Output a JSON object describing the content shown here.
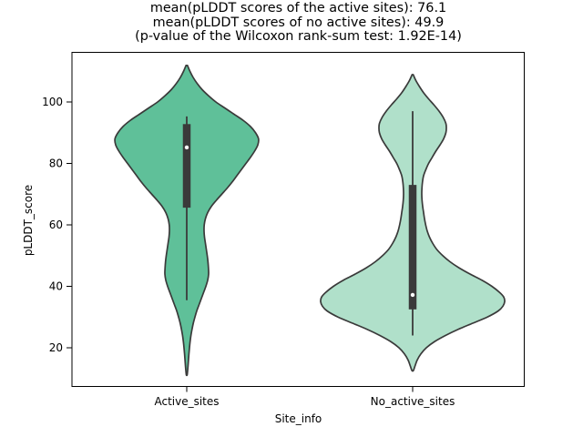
{
  "chart_data": {
    "type": "violin",
    "title_lines": [
      "mean(pLDDT scores of the active sites): 76.1",
      "mean(pLDDT scores of no active sites): 49.9",
      "(p-value of the Wilcoxon rank-sum test: 1.92E-14)"
    ],
    "xlabel": "Site_info",
    "ylabel": "pLDDT_score",
    "categories": [
      "Active_sites",
      "No_active_sites"
    ],
    "yticks": [
      20,
      40,
      60,
      80,
      100
    ],
    "ylim": [
      7.3,
      116.1
    ],
    "grid": false,
    "legend": "none",
    "stats": {
      "mean_active_sites": 76.1,
      "mean_no_active_sites": 49.9,
      "wilcoxon_p_value": "1.92E-14"
    },
    "series": [
      {
        "name": "Active_sites",
        "fill_color": "#5fc099",
        "box": {
          "whisker_low": 35.5,
          "q1": 65.6,
          "median": 85.2,
          "q3": 92.8,
          "whisker_high": 95.3
        },
        "kde_extent": [
          11.1,
          111.9
        ],
        "kde_profile": [
          [
            111.9,
            0.8
          ],
          [
            110,
            3.5
          ],
          [
            108,
            7
          ],
          [
            106,
            11.5
          ],
          [
            104,
            17
          ],
          [
            102,
            24
          ],
          [
            100,
            32
          ],
          [
            98,
            42
          ],
          [
            96,
            52
          ],
          [
            94,
            62
          ],
          [
            92,
            70
          ],
          [
            90,
            75.5
          ],
          [
            88,
            78.8
          ],
          [
            86,
            78
          ],
          [
            84,
            74.5
          ],
          [
            82,
            70
          ],
          [
            80,
            65
          ],
          [
            78,
            60
          ],
          [
            76,
            55
          ],
          [
            74,
            50
          ],
          [
            72,
            44.5
          ],
          [
            70,
            38.5
          ],
          [
            68,
            32.5
          ],
          [
            66,
            27
          ],
          [
            64,
            23
          ],
          [
            62,
            20.5
          ],
          [
            60,
            19.2
          ],
          [
            58,
            19
          ],
          [
            56,
            19.5
          ],
          [
            54,
            20.5
          ],
          [
            52,
            21.5
          ],
          [
            50,
            22.5
          ],
          [
            48,
            23.3
          ],
          [
            46,
            23.8
          ],
          [
            44,
            24
          ],
          [
            42,
            23
          ],
          [
            40,
            21
          ],
          [
            38,
            18.5
          ],
          [
            36,
            16
          ],
          [
            34,
            13.5
          ],
          [
            32,
            11
          ],
          [
            30,
            9
          ],
          [
            28,
            7.2
          ],
          [
            26,
            5.8
          ],
          [
            24,
            4.6
          ],
          [
            22,
            3.7
          ],
          [
            20,
            3
          ],
          [
            18,
            2.4
          ],
          [
            16,
            1.9
          ],
          [
            14,
            1.4
          ],
          [
            12,
            0.8
          ],
          [
            11.1,
            0.4
          ]
        ]
      },
      {
        "name": "No_active_sites",
        "fill_color": "#b0e0ca",
        "box": {
          "whisker_low": 24,
          "q1": 32.5,
          "median": 37.2,
          "q3": 73,
          "whisker_high": 97
        },
        "kde_extent": [
          12.6,
          108.9
        ],
        "kde_profile": [
          [
            108.9,
            0.6
          ],
          [
            107,
            3.5
          ],
          [
            105,
            7.5
          ],
          [
            103,
            12
          ],
          [
            101,
            17.5
          ],
          [
            99,
            23.5
          ],
          [
            97,
            29
          ],
          [
            95,
            33.5
          ],
          [
            93,
            36.5
          ],
          [
            91.5,
            37
          ],
          [
            90,
            36.5
          ],
          [
            88,
            34
          ],
          [
            86,
            30
          ],
          [
            84,
            25.5
          ],
          [
            82,
            21.5
          ],
          [
            80,
            17.5
          ],
          [
            78,
            14.5
          ],
          [
            76,
            12
          ],
          [
            74,
            10.8
          ],
          [
            72,
            10.2
          ],
          [
            70,
            10
          ],
          [
            68,
            10.3
          ],
          [
            66,
            11
          ],
          [
            64,
            12
          ],
          [
            62,
            13
          ],
          [
            60,
            14.3
          ],
          [
            58,
            16
          ],
          [
            56,
            18.5
          ],
          [
            54,
            22
          ],
          [
            52,
            26.5
          ],
          [
            50,
            33
          ],
          [
            48,
            41
          ],
          [
            46,
            51
          ],
          [
            44,
            63
          ],
          [
            42,
            76
          ],
          [
            40,
            87
          ],
          [
            38,
            95.5
          ],
          [
            36.5,
            100
          ],
          [
            35,
            101
          ],
          [
            33.5,
            99
          ],
          [
            32,
            94
          ],
          [
            30,
            82
          ],
          [
            28,
            66
          ],
          [
            26,
            50
          ],
          [
            24,
            36
          ],
          [
            22,
            24
          ],
          [
            20,
            15
          ],
          [
            18,
            9
          ],
          [
            16,
            5
          ],
          [
            14,
            2.5
          ],
          [
            12.6,
            0.8
          ]
        ]
      }
    ],
    "colors": {
      "edge": "#3a3a3a",
      "box_fill": "#3a3a3a",
      "median_dot": "#ffffff",
      "spine": "#000000",
      "background": "#ffffff"
    }
  }
}
